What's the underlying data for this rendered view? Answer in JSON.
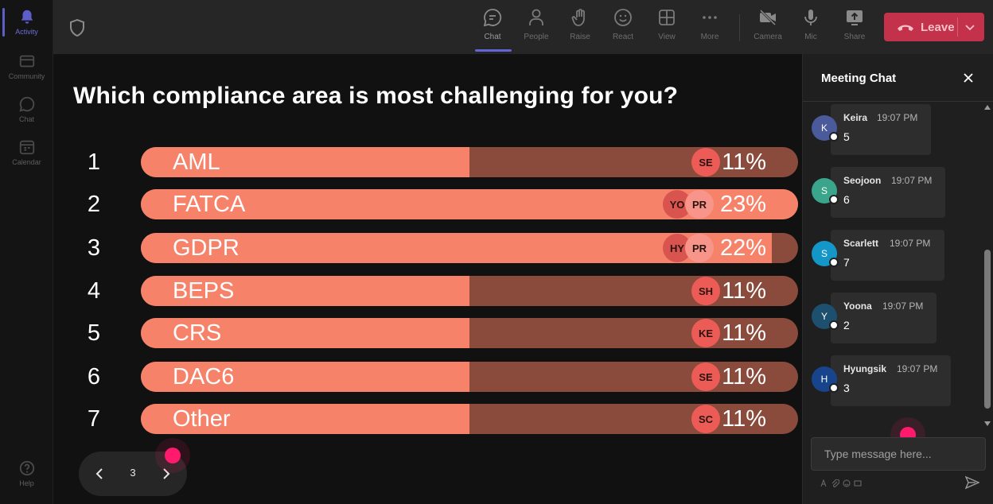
{
  "rail": {
    "items": [
      {
        "label": "Activity",
        "icon": "bell-icon"
      },
      {
        "label": "Community",
        "icon": "community-icon"
      },
      {
        "label": "Chat",
        "icon": "chat-icon"
      },
      {
        "label": "Calendar",
        "icon": "calendar-icon"
      }
    ],
    "help_label": "Help"
  },
  "toolbar": {
    "buttons": [
      {
        "label": "Chat",
        "icon": "chat-icon"
      },
      {
        "label": "People",
        "icon": "people-icon"
      },
      {
        "label": "Raise",
        "icon": "hand-icon"
      },
      {
        "label": "React",
        "icon": "smiley-icon"
      },
      {
        "label": "View",
        "icon": "grid-icon"
      },
      {
        "label": "More",
        "icon": "more-icon"
      },
      {
        "label": "Camera",
        "icon": "camera-off-icon"
      },
      {
        "label": "Mic",
        "icon": "mic-icon"
      },
      {
        "label": "Share",
        "icon": "share-icon"
      }
    ],
    "leave_label": "Leave",
    "leave_color": "#c4314b"
  },
  "poll": {
    "question": "Which compliance area is most challenging for you?",
    "options": [
      {
        "num": "1",
        "label": "AML",
        "pct": "11%",
        "fill": 0.5,
        "avatars": [
          "SE"
        ]
      },
      {
        "num": "2",
        "label": "FATCA",
        "pct": "23%",
        "fill": 1.0,
        "avatars": [
          "YO",
          "PR"
        ]
      },
      {
        "num": "3",
        "label": "GDPR",
        "pct": "22%",
        "fill": 0.96,
        "avatars": [
          "HY",
          "PR"
        ]
      },
      {
        "num": "4",
        "label": "BEPS",
        "pct": "11%",
        "fill": 0.5,
        "avatars": [
          "SH"
        ]
      },
      {
        "num": "5",
        "label": "CRS",
        "pct": "11%",
        "fill": 0.5,
        "avatars": [
          "KE"
        ]
      },
      {
        "num": "6",
        "label": "DAC6",
        "pct": "11%",
        "fill": 0.5,
        "avatars": [
          "SE"
        ]
      },
      {
        "num": "7",
        "label": "Other",
        "pct": "11%",
        "fill": 0.5,
        "avatars": [
          "SC"
        ]
      }
    ],
    "page": "3",
    "fill_color": "#f7826a",
    "track_color": "#8a4b3c"
  },
  "chat": {
    "title": "Meeting Chat",
    "messages": [
      {
        "initial": "K",
        "name": "Keira",
        "time": "19:07 PM",
        "text": "5",
        "color": "#4a5a9a"
      },
      {
        "initial": "S",
        "name": "Seojoon",
        "time": "19:07 PM",
        "text": "6",
        "color": "#3aa58a"
      },
      {
        "initial": "S",
        "name": "Scarlett",
        "time": "19:07 PM",
        "text": "7",
        "color": "#1596c9"
      },
      {
        "initial": "Y",
        "name": "Yoona",
        "time": "19:07 PM",
        "text": "2",
        "color": "#1d4f6e"
      },
      {
        "initial": "H",
        "name": "Hyungsik",
        "time": "19:07 PM",
        "text": "3",
        "color": "#17448a"
      }
    ],
    "compose_placeholder": "Type message here..."
  }
}
